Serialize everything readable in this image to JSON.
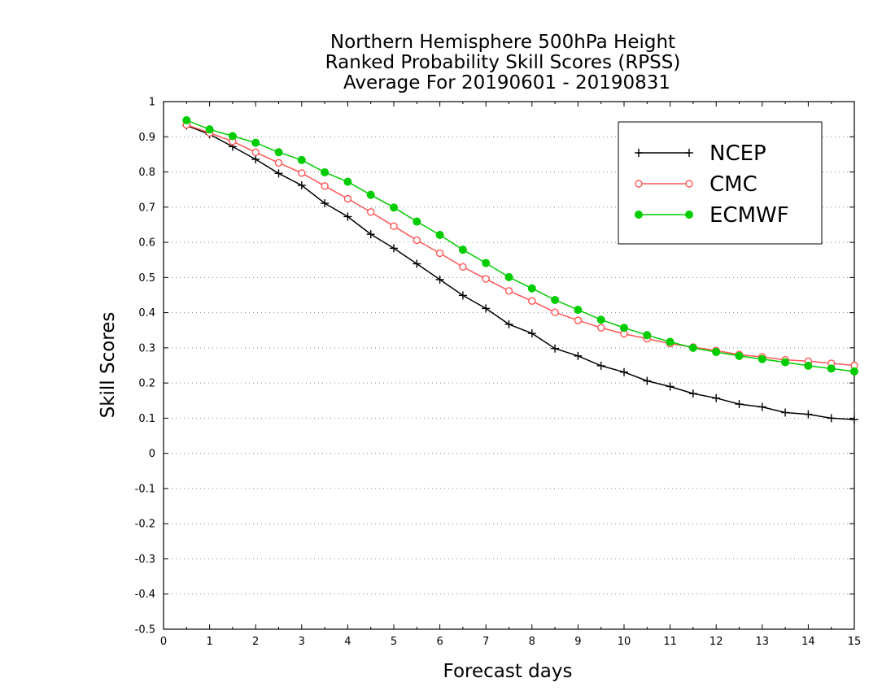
{
  "chart_data": {
    "type": "line",
    "title": [
      "Northern Hemisphere 500hPa Height",
      "Ranked Probability Skill Scores (RPSS)",
      "Average For 20190601 - 20190831"
    ],
    "xlabel": "Forecast days",
    "ylabel": "Skill Scores",
    "xlim": [
      0,
      15
    ],
    "ylim": [
      -0.5,
      1
    ],
    "xticks": [
      "0",
      "1",
      "2",
      "3",
      "4",
      "5",
      "6",
      "7",
      "8",
      "9",
      "10",
      "11",
      "12",
      "13",
      "14",
      "15"
    ],
    "yticks": [
      "-0.5",
      "-0.4",
      "-0.3",
      "-0.2",
      "-0.1",
      "0",
      "0.1",
      "0.2",
      "0.3",
      "0.4",
      "0.5",
      "0.6",
      "0.7",
      "0.8",
      "0.9",
      "1"
    ],
    "grid": "horizontal dotted",
    "legend_position": "top-right",
    "x": [
      0.5,
      1,
      1.5,
      2,
      2.5,
      3,
      3.5,
      4,
      4.5,
      5,
      5.5,
      6,
      6.5,
      7,
      7.5,
      8,
      8.5,
      9,
      9.5,
      10,
      10.5,
      11,
      11.5,
      12,
      12.5,
      13,
      13.5,
      14,
      14.5,
      15
    ],
    "series": [
      {
        "name": "NCEP",
        "color": "#000000",
        "marker": "plus",
        "values": [
          0.932,
          0.907,
          0.872,
          0.836,
          0.796,
          0.762,
          0.711,
          0.673,
          0.623,
          0.583,
          0.539,
          0.494,
          0.449,
          0.412,
          0.367,
          0.341,
          0.298,
          0.277,
          0.249,
          0.231,
          0.206,
          0.19,
          0.17,
          0.157,
          0.14,
          0.132,
          0.116,
          0.111,
          0.1,
          0.096
        ]
      },
      {
        "name": "CMC",
        "color": "#ff5555",
        "marker": "open-circle",
        "values": [
          0.934,
          0.911,
          0.887,
          0.856,
          0.826,
          0.797,
          0.76,
          0.724,
          0.686,
          0.646,
          0.606,
          0.569,
          0.53,
          0.496,
          0.462,
          0.433,
          0.401,
          0.378,
          0.357,
          0.34,
          0.326,
          0.312,
          0.302,
          0.292,
          0.281,
          0.274,
          0.266,
          0.262,
          0.256,
          0.25
        ]
      },
      {
        "name": "ECMWF",
        "color": "#00cc00",
        "marker": "filled-circle",
        "values": [
          0.947,
          0.921,
          0.902,
          0.883,
          0.856,
          0.834,
          0.799,
          0.772,
          0.735,
          0.699,
          0.659,
          0.621,
          0.579,
          0.541,
          0.501,
          0.469,
          0.436,
          0.408,
          0.38,
          0.357,
          0.336,
          0.317,
          0.3,
          0.288,
          0.277,
          0.268,
          0.259,
          0.249,
          0.241,
          0.233
        ]
      }
    ]
  }
}
